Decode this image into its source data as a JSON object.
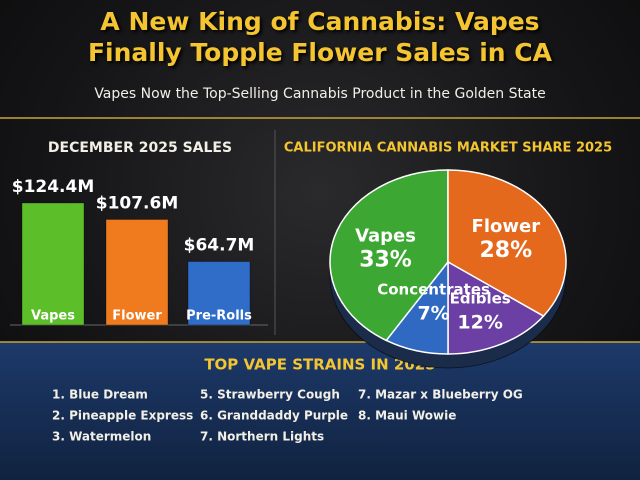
{
  "title": "A New King of Cannabis: Vapes Finally Topple Flower Sales in CA",
  "subtitle": "Vapes Now the Top-Selling Cannabis Product in the Golden State",
  "chart_data": [
    {
      "type": "bar",
      "title": "DECEMBER 2025 SALES",
      "categories": [
        "Vapes",
        "Flower",
        "Pre-Rolls"
      ],
      "values": [
        124.4,
        107.6,
        64.7
      ],
      "value_labels": [
        "$124.4M",
        "$107.6M",
        "$64.7M"
      ],
      "colors": [
        "#5cbf2a",
        "#f07a1e",
        "#2f6dc8"
      ]
    },
    {
      "type": "pie",
      "title": "CALIFORNIA CANNABIS MARKET SHARE 2025",
      "categories": [
        "Vapes",
        "Flower",
        "Edibles",
        "Concentrates"
      ],
      "values": [
        33,
        28,
        12,
        7
      ],
      "value_labels": [
        "33%",
        "28%",
        "12%",
        "7%"
      ],
      "colors": [
        "#3da733",
        "#e4691c",
        "#6b3fa3",
        "#2f69c2"
      ]
    }
  ],
  "strains": {
    "title": "TOP VAPE STRAINS IN 2025",
    "columns": [
      [
        "1. Blue Dream",
        "2. Pineapple Express",
        "3. Watermelon"
      ],
      [
        "5. Strawberry Cough",
        "6. Granddaddy Purple",
        "7. Northern Lights"
      ],
      [
        "7. Mazar x Blueberry OG",
        "8. Maui Wowie"
      ]
    ]
  }
}
